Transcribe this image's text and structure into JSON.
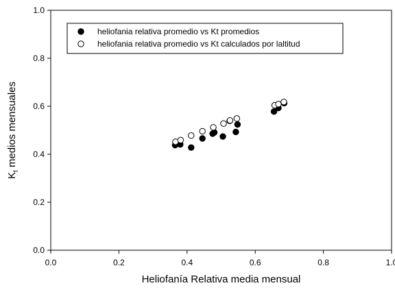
{
  "chart_data": {
    "type": "scatter",
    "xlabel": "Heliofanía Relativa media mensual",
    "ylabel": {
      "main": "K",
      "sub": "t",
      "rest": " medios mensuales"
    },
    "xlim": [
      0.0,
      1.0
    ],
    "ylim": [
      0.0,
      1.0
    ],
    "xticks": [
      "0.0",
      "0.2",
      "0.4",
      "0.6",
      "0.8",
      "1.0"
    ],
    "yticks": [
      "0.0",
      "0.2",
      "0.4",
      "0.6",
      "0.8",
      "1.0"
    ],
    "grid": false,
    "legend_position": "top-left",
    "series": [
      {
        "name": "heliofania relativa promedio vs Kt promedios",
        "marker": "filled-circle",
        "color": "#000000",
        "points": [
          [
            0.365,
            0.438
          ],
          [
            0.38,
            0.441
          ],
          [
            0.412,
            0.428
          ],
          [
            0.445,
            0.466
          ],
          [
            0.475,
            0.486
          ],
          [
            0.48,
            0.491
          ],
          [
            0.505,
            0.474
          ],
          [
            0.525,
            0.539
          ],
          [
            0.543,
            0.493
          ],
          [
            0.548,
            0.524
          ],
          [
            0.655,
            0.578
          ],
          [
            0.668,
            0.593
          ],
          [
            0.685,
            0.613
          ]
        ]
      },
      {
        "name": "heliofania relativa promedio vs Kt calculados por laltitud",
        "marker": "open-circle",
        "color": "#000000",
        "points": [
          [
            0.366,
            0.452
          ],
          [
            0.381,
            0.459
          ],
          [
            0.412,
            0.478
          ],
          [
            0.445,
            0.496
          ],
          [
            0.477,
            0.512
          ],
          [
            0.507,
            0.528
          ],
          [
            0.526,
            0.541
          ],
          [
            0.546,
            0.549
          ],
          [
            0.657,
            0.604
          ],
          [
            0.668,
            0.609
          ],
          [
            0.684,
            0.618
          ]
        ]
      }
    ]
  }
}
